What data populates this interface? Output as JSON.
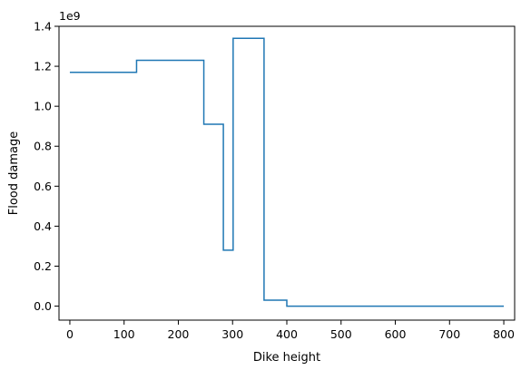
{
  "chart_data": {
    "type": "line",
    "drawstyle": "steps-post",
    "title": "",
    "xlabel": "Dike height",
    "ylabel": "Flood damage",
    "y_offset_text": "1e9",
    "xlim": [
      -20,
      820
    ],
    "ylim": [
      -0.07,
      1.4
    ],
    "xticks": [
      0,
      100,
      200,
      300,
      400,
      500,
      600,
      700,
      800
    ],
    "yticks": [
      0.0,
      0.2,
      0.4,
      0.6,
      0.8,
      1.0,
      1.2,
      1.4
    ],
    "xtick_labels": [
      "0",
      "100",
      "200",
      "300",
      "400",
      "500",
      "600",
      "700",
      "800"
    ],
    "ytick_labels": [
      "0.0",
      "0.2",
      "0.4",
      "0.6",
      "0.8",
      "1.0",
      "1.2",
      "1.4"
    ],
    "grid": false,
    "legend": "none",
    "series": [
      {
        "color": "#1f77b4",
        "x": [
          0,
          123,
          247,
          283,
          301,
          358,
          400,
          800
        ],
        "y": [
          1.17,
          1.23,
          0.91,
          0.28,
          1.34,
          0.03,
          0.0,
          0.0
        ]
      }
    ]
  }
}
